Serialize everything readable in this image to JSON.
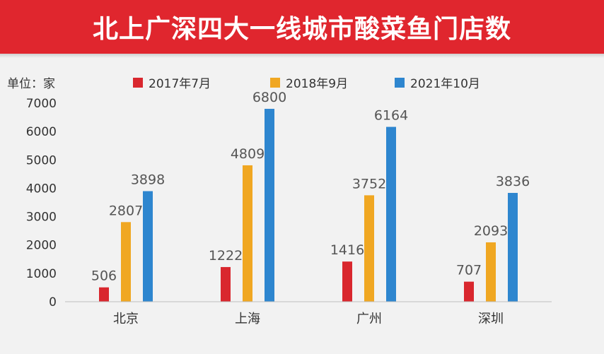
{
  "header": {
    "title": "北上广深四大一线城市酸菜鱼门店数"
  },
  "unit_label": "单位：家",
  "colors": {
    "banner": "#e0262e",
    "s2017": "#d9272e",
    "s2018": "#f0a722",
    "s2021": "#2e86cf"
  },
  "chart_data": {
    "type": "bar",
    "title": "北上广深四大一线城市酸菜鱼门店数",
    "xlabel": "",
    "ylabel": "单位：家",
    "categories": [
      "北京",
      "上海",
      "广州",
      "深圳"
    ],
    "series": [
      {
        "name": "2017年7月",
        "values": [
          506,
          1222,
          1416,
          707
        ],
        "labels": [
          "506",
          "1222",
          "1416",
          "707"
        ],
        "color": "#d9272e"
      },
      {
        "name": "2018年9月",
        "values": [
          2807,
          4809,
          3752,
          2093
        ],
        "labels": [
          "2807",
          "4809",
          "3752",
          "2093"
        ],
        "color": "#f0a722"
      },
      {
        "name": "2021年10月",
        "values": [
          3898,
          6800,
          6164,
          3836
        ],
        "labels": [
          "3898",
          "6800",
          "6164",
          "3836"
        ],
        "color": "#2e86cf"
      }
    ],
    "ylim": [
      0,
      7000
    ],
    "yticks": [
      "0",
      "1000",
      "2000",
      "3000",
      "4000",
      "5000",
      "6000",
      "7000"
    ],
    "grid": false,
    "legend_position": "top"
  }
}
